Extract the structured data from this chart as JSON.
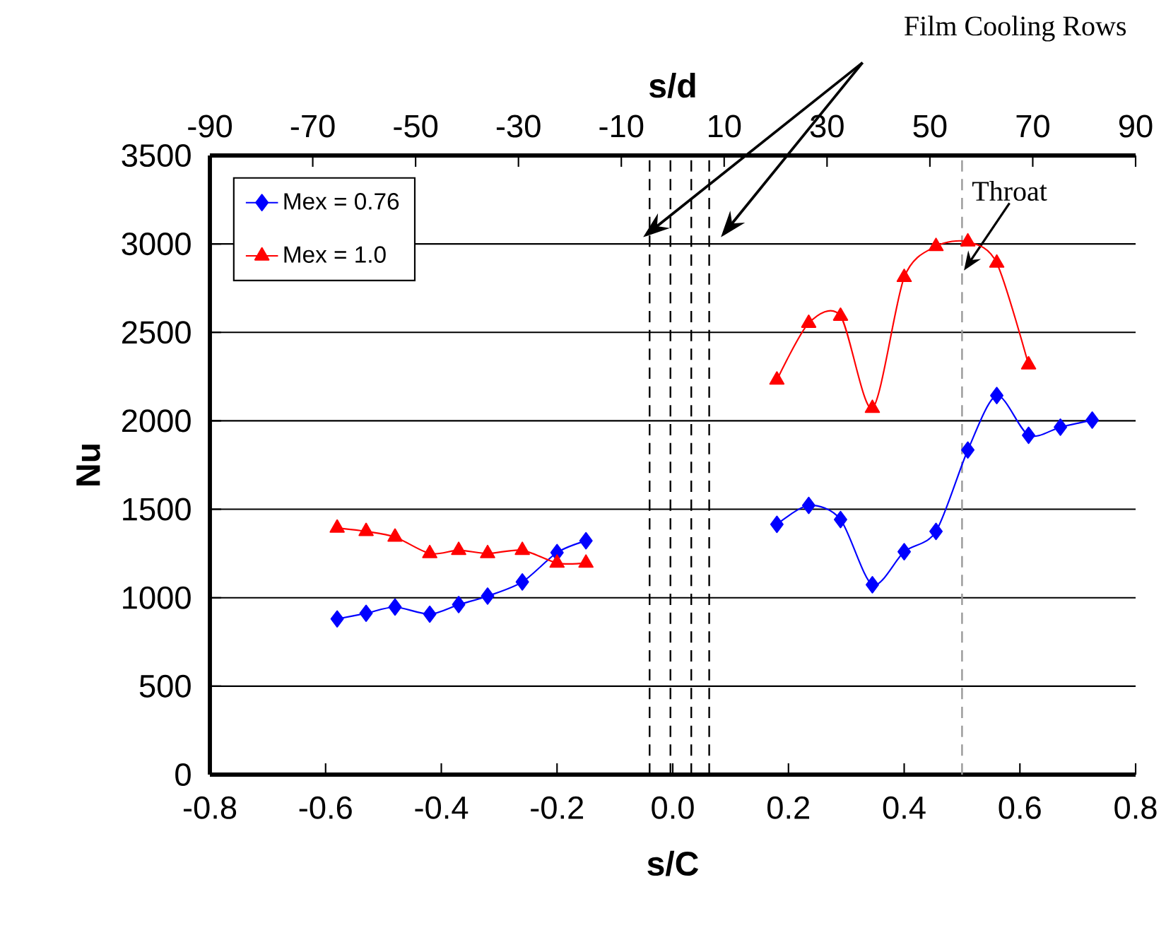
{
  "chart_data": {
    "type": "line",
    "xlabel": "s/C",
    "ylabel": "Nu",
    "x2label": "s/d",
    "xlim": [
      -0.8,
      0.8
    ],
    "xticks": [
      -0.8,
      -0.6,
      -0.4,
      -0.2,
      {
        "value": 0,
        "label": "0.0"
      },
      0.2,
      0.4,
      0.6,
      0.8
    ],
    "x2lim": [
      -90,
      90
    ],
    "x2ticks": [
      -90,
      -70,
      -50,
      -30,
      -10,
      10,
      30,
      50,
      70,
      90
    ],
    "ylim": [
      0,
      3500
    ],
    "yticks": [
      0,
      500,
      1000,
      1500,
      2000,
      2500,
      3000,
      3500
    ],
    "grid": "y",
    "legend": "top left",
    "series": [
      {
        "name": "Mex = 0.76",
        "color": "#0000ff",
        "marker": "diamond",
        "x": [
          -0.58,
          -0.53,
          -0.48,
          -0.42,
          -0.37,
          -0.32,
          -0.26,
          -0.2,
          -0.15,
          0.0,
          0.18,
          0.235,
          0.29,
          0.345,
          0.4,
          0.455,
          0.51,
          0.56,
          0.615,
          0.67,
          0.725
        ],
        "values": [
          880,
          912,
          947,
          907,
          961,
          1009,
          1089,
          1255,
          1322,
          null,
          1415,
          1522,
          1442,
          1073,
          1260,
          1375,
          1835,
          2143,
          1918,
          1964,
          2004
        ]
      },
      {
        "name": "Mex = 1.0",
        "color": "#ff0000",
        "marker": "triangle",
        "x": [
          -0.58,
          -0.53,
          -0.48,
          -0.42,
          -0.37,
          -0.32,
          -0.26,
          -0.2,
          -0.15,
          0.0,
          0.18,
          0.235,
          0.29,
          0.345,
          0.4,
          0.455,
          0.51,
          0.56,
          0.615
        ],
        "values": [
          1394,
          1375,
          1343,
          1250,
          1268,
          1250,
          1268,
          1196,
          1196,
          null,
          2231,
          2552,
          2592,
          2071,
          2811,
          2986,
          3012,
          2892,
          2317
        ]
      }
    ],
    "ref_lines": [
      {
        "axis": "x",
        "value": -0.04,
        "color": "#000000",
        "line_style": "dashed"
      },
      {
        "axis": "x",
        "value": -0.004,
        "color": "#000000",
        "line_style": "dashed"
      },
      {
        "axis": "x",
        "value": 0.032,
        "color": "#000000",
        "line_style": "dashed"
      },
      {
        "axis": "x",
        "value": 0.063,
        "color": "#000000",
        "line_style": "dashed"
      },
      {
        "axis": "x",
        "value": 0.5,
        "label": "Throat",
        "color": "#999999",
        "line_style": "dashed"
      }
    ],
    "annotations": [
      "Film Cooling Rows"
    ]
  }
}
